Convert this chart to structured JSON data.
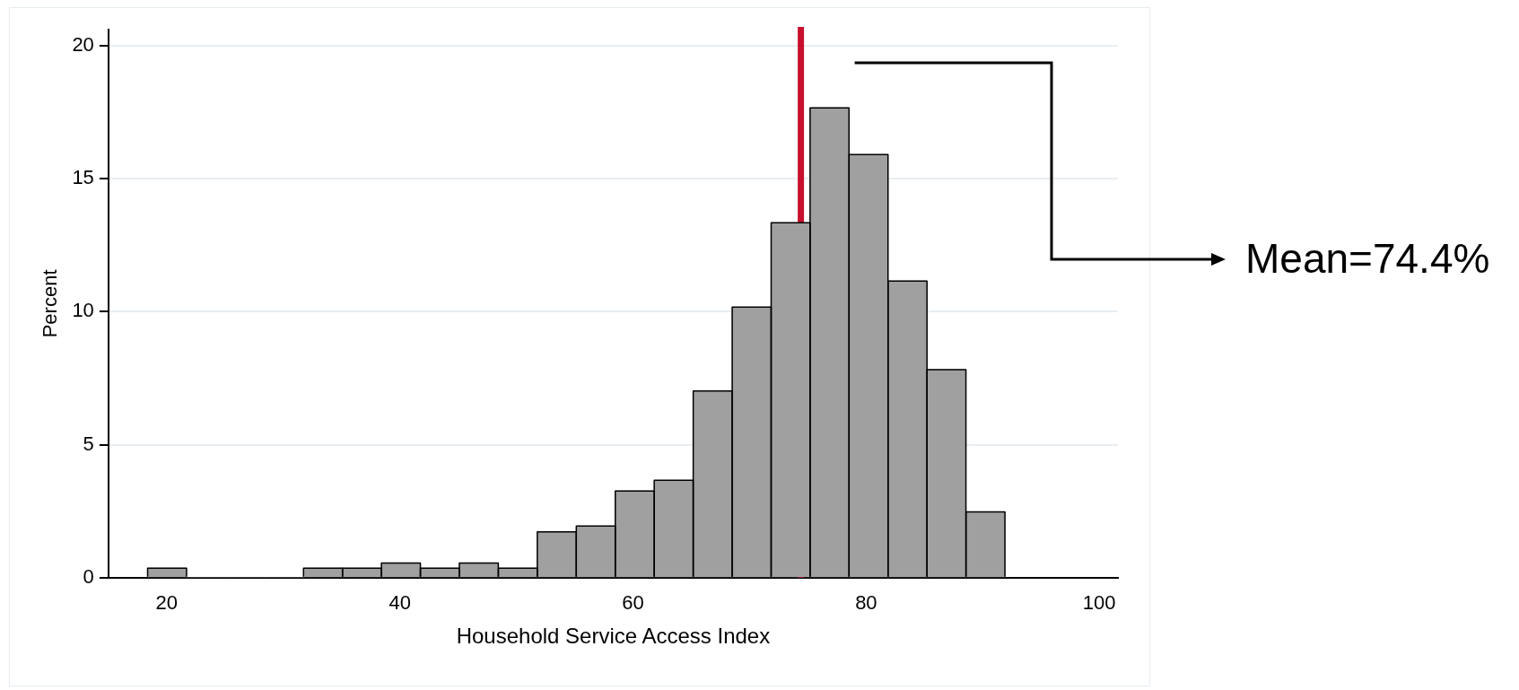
{
  "chart_data": {
    "type": "histogram",
    "xlabel": "Household Service Access Index",
    "ylabel": "Percent",
    "bins": [
      18.36,
      21.7,
      25.05,
      28.39,
      31.73,
      35.08,
      38.42,
      41.76,
      45.1,
      48.45,
      51.79,
      55.13,
      58.48,
      61.82,
      65.16,
      68.51,
      71.85,
      75.19,
      78.53,
      81.88,
      85.22,
      88.56,
      91.91
    ],
    "values": [
      0.36,
      0,
      0,
      0,
      0.36,
      0.36,
      0.55,
      0.36,
      0.55,
      0.36,
      1.72,
      1.94,
      3.26,
      3.66,
      7.02,
      10.17,
      13.34,
      17.66,
      15.9,
      11.15,
      7.82,
      2.47
    ],
    "color": "#a0a0a0",
    "xlim": [
      15,
      101.6
    ],
    "xticks": [
      20,
      40,
      60,
      80,
      100
    ],
    "ylim": [
      0,
      20.6
    ],
    "yticks": [
      0,
      5,
      10,
      15,
      20
    ],
    "grid": "y",
    "ref_lines": [
      {
        "axis": "x",
        "value": 74.4,
        "color": "#c8102e"
      }
    ],
    "annotations": [
      "Mean=74.4%"
    ]
  }
}
